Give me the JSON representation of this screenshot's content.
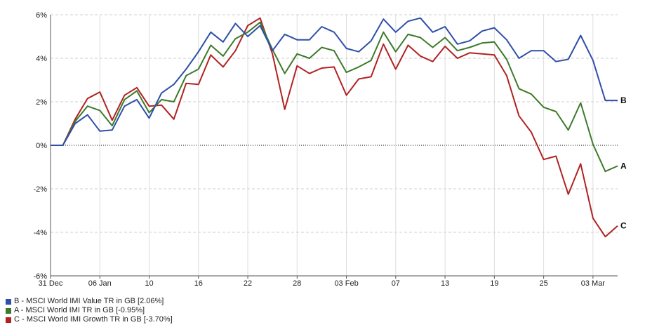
{
  "chart_data": {
    "type": "line",
    "ylim": [
      -6,
      6
    ],
    "y_ticks": [
      {
        "value": 6,
        "label": "6%"
      },
      {
        "value": 4,
        "label": "4%"
      },
      {
        "value": 2,
        "label": "2%"
      },
      {
        "value": 0,
        "label": "0%"
      },
      {
        "value": -2,
        "label": "-2%"
      },
      {
        "value": -4,
        "label": "-4%"
      },
      {
        "value": -6,
        "label": "-6%"
      }
    ],
    "x_ticks": [
      {
        "index": 0,
        "label": "31 Dec"
      },
      {
        "index": 4,
        "label": "06 Jan"
      },
      {
        "index": 8,
        "label": "10"
      },
      {
        "index": 12,
        "label": "16"
      },
      {
        "index": 16,
        "label": "22"
      },
      {
        "index": 20,
        "label": "28"
      },
      {
        "index": 24,
        "label": "03 Feb"
      },
      {
        "index": 28,
        "label": "07"
      },
      {
        "index": 32,
        "label": "13"
      },
      {
        "index": 36,
        "label": "19"
      },
      {
        "index": 40,
        "label": "25"
      },
      {
        "index": 44,
        "label": "03 Mar"
      }
    ],
    "grid": true,
    "zero_line": "dotted",
    "legend_position": "bottom-left",
    "series": [
      {
        "name": "B - MSCI World IMI Value TR in GB [2.06%]",
        "end_label": "B",
        "color": "#2f4fa8",
        "values": [
          0,
          0,
          1.0,
          1.4,
          0.65,
          0.7,
          1.8,
          2.1,
          1.25,
          2.4,
          2.8,
          3.5,
          4.3,
          5.2,
          4.75,
          5.6,
          5.0,
          5.5,
          4.35,
          5.1,
          4.85,
          4.85,
          5.45,
          5.2,
          4.45,
          4.3,
          4.8,
          5.8,
          5.2,
          5.7,
          5.85,
          5.2,
          5.45,
          4.65,
          4.8,
          5.25,
          5.4,
          4.85,
          4.0,
          4.35,
          4.35,
          3.85,
          3.95,
          5.05,
          3.9,
          2.06,
          2.06
        ]
      },
      {
        "name": "A - MSCI World IMI TR in GB [-0.95%]",
        "end_label": "A",
        "color": "#3d7a2a",
        "values": [
          0,
          0,
          1.1,
          1.8,
          1.6,
          0.9,
          2.1,
          2.5,
          1.5,
          2.1,
          2.0,
          3.2,
          3.5,
          4.6,
          4.1,
          4.9,
          5.2,
          5.65,
          4.4,
          3.3,
          4.2,
          4.0,
          4.5,
          4.35,
          3.35,
          3.6,
          3.9,
          5.2,
          4.3,
          5.1,
          4.95,
          4.5,
          4.95,
          4.35,
          4.5,
          4.7,
          4.75,
          3.95,
          2.6,
          2.35,
          1.75,
          1.55,
          0.7,
          1.95,
          0.05,
          -1.2,
          -0.95
        ]
      },
      {
        "name": "C - MSCI World IMI Growth TR in GB [-3.70%]",
        "end_label": "C",
        "color": "#b22222",
        "values": [
          0,
          0,
          1.2,
          2.15,
          2.45,
          1.15,
          2.3,
          2.65,
          1.8,
          1.85,
          1.2,
          2.85,
          2.8,
          4.15,
          3.6,
          4.35,
          5.5,
          5.85,
          4.2,
          1.65,
          3.65,
          3.3,
          3.55,
          3.6,
          2.3,
          3.05,
          3.15,
          4.65,
          3.5,
          4.6,
          4.1,
          3.85,
          4.55,
          4.0,
          4.25,
          4.2,
          4.15,
          3.2,
          1.35,
          0.6,
          -0.65,
          -0.5,
          -2.25,
          -0.85,
          -3.35,
          -4.2,
          -3.7
        ]
      }
    ]
  }
}
